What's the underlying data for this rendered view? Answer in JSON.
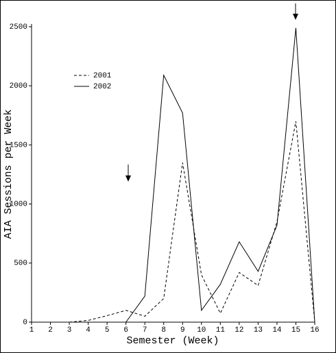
{
  "chart_data": {
    "type": "line",
    "x_label": "Semester (Week)",
    "y_label": "AIA Sessions per Week",
    "x": [
      1,
      2,
      3,
      4,
      5,
      6,
      7,
      8,
      9,
      10,
      11,
      12,
      13,
      14,
      15,
      16
    ],
    "series": [
      {
        "name": "2001",
        "color": "#000000",
        "dash": true,
        "values": [
          null,
          null,
          0,
          15,
          55,
          100,
          50,
          200,
          1350,
          400,
          75,
          420,
          310,
          850,
          1700,
          0
        ]
      },
      {
        "name": "2002",
        "color": "#000000",
        "dash": false,
        "values": [
          null,
          null,
          null,
          null,
          null,
          0,
          220,
          2090,
          1770,
          100,
          320,
          680,
          430,
          820,
          2490,
          0
        ]
      }
    ],
    "xlim": [
      1,
      16
    ],
    "xticks": [
      1,
      2,
      3,
      4,
      5,
      6,
      7,
      8,
      9,
      10,
      11,
      12,
      13,
      14,
      15,
      16
    ],
    "ylim": [
      0,
      2500
    ],
    "yticks": [
      0,
      500,
      1000,
      1500,
      2000,
      2500
    ],
    "grid": false
  }
}
